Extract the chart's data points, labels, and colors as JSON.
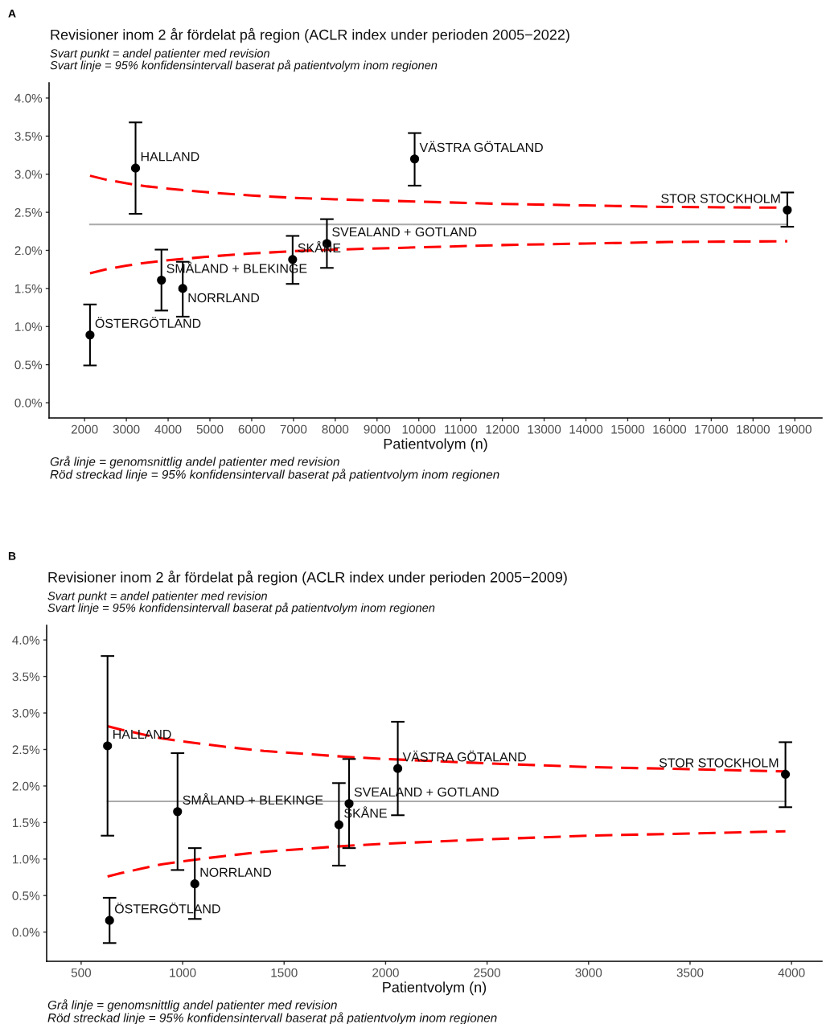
{
  "chart_data": [
    {
      "type": "scatter",
      "title": "Revisioner inom 2 år fördelat på region (ACLR index under perioden 2005−2022)",
      "subtitle": "Svart punkt = andel patienter med revision\nSvart linje = 95% konfidensintervall baserat på patientvolym inom regionen",
      "xlabel": "Patientvolym (n)",
      "xlim": [
        1150,
        19650
      ],
      "xticks": [
        2000,
        3000,
        4000,
        5000,
        6000,
        7000,
        8000,
        9000,
        10000,
        11000,
        12000,
        13000,
        14000,
        15000,
        16000,
        17000,
        18000,
        19000
      ],
      "ylim": [
        -0.2,
        4.2
      ],
      "yticks": [
        {
          "value": 0,
          "label": "0.0%"
        },
        {
          "value": 0.5,
          "label": "0.5%"
        },
        {
          "value": 1,
          "label": "1.0%"
        },
        {
          "value": 1.5,
          "label": "1.5%"
        },
        {
          "value": 2,
          "label": "2.0%"
        },
        {
          "value": 2.5,
          "label": "2.5%"
        },
        {
          "value": 3,
          "label": "3.0%"
        },
        {
          "value": 3.5,
          "label": "3.5%"
        },
        {
          "value": 4,
          "label": "4.0%"
        }
      ],
      "series": [
        {
          "type": "line",
          "color": "#aaaaaa",
          "line_style": "solid",
          "x": [
            2130,
            18820
          ],
          "values": [
            2.34,
            2.34
          ]
        },
        {
          "type": "line",
          "color": "#ff0000",
          "line_style": "dashed",
          "x": [
            2130,
            2500,
            3000,
            3500,
            4000,
            5000,
            6000,
            7000,
            8000,
            10000,
            12000,
            14000,
            16000,
            18820
          ],
          "values": [
            2.98,
            2.93,
            2.88,
            2.84,
            2.81,
            2.76,
            2.72,
            2.69,
            2.67,
            2.64,
            2.61,
            2.59,
            2.57,
            2.56
          ]
        },
        {
          "type": "line",
          "color": "#ff0000",
          "line_style": "dashed",
          "x": [
            2130,
            2500,
            3000,
            3500,
            4000,
            5000,
            6000,
            7000,
            8000,
            10000,
            12000,
            14000,
            16000,
            18820
          ],
          "values": [
            1.7,
            1.75,
            1.8,
            1.84,
            1.87,
            1.92,
            1.96,
            1.99,
            2.01,
            2.04,
            2.07,
            2.09,
            2.11,
            2.12
          ]
        },
        {
          "color": "#000000",
          "marker": "circle",
          "x": [
            2130,
            3220,
            3840,
            4350,
            6980,
            7800,
            9900,
            18820
          ],
          "values": [
            0.89,
            3.08,
            1.61,
            1.5,
            1.88,
            2.09,
            3.2,
            2.53
          ],
          "errors": [
            [
              0.49,
              1.29
            ],
            [
              2.48,
              3.68
            ],
            [
              1.21,
              2.01
            ],
            [
              1.13,
              1.85
            ],
            [
              1.56,
              2.19
            ],
            [
              1.77,
              2.41
            ],
            [
              2.85,
              3.54
            ],
            [
              2.31,
              2.76
            ]
          ]
        }
      ],
      "annotations": [
        "A",
        {
          "text": "ÖSTERGÖTLAND",
          "x": 2130,
          "y": 0.89
        },
        {
          "text": "HALLAND",
          "x": 3220,
          "y": 3.08
        },
        {
          "text": "SMÅLAND + BLEKINGE",
          "x": 3840,
          "y": 1.61
        },
        {
          "text": "NORRLAND",
          "x": 4350,
          "y": 1.5
        },
        {
          "text": "SKÅNE",
          "x": 6980,
          "y": 1.88
        },
        {
          "text": "SVEALAND + GOTLAND",
          "x": 7800,
          "y": 2.09
        },
        {
          "text": "VÄSTRA GÖTALAND",
          "x": 9900,
          "y": 3.2
        },
        {
          "text": "STOR STOCKHOLM",
          "x": 18820,
          "y": 2.53
        },
        "Grå linje = genomsnittlig andel patienter med revision",
        "Röd streckad linje = 95% konfidensintervall baserat på patientvolym inom regionen"
      ]
    },
    {
      "type": "scatter",
      "title": "Revisioner inom 2 år fördelat på region (ACLR index under perioden 2005−2009)",
      "subtitle": "Svart punkt = andel patienter med revision\nSvart linje = 95% konfidensintervall baserat på patientvolym inom regionen",
      "xlabel": "Patientvolym (n)",
      "xlim": [
        330,
        4150
      ],
      "xticks": [
        500,
        1000,
        1500,
        2000,
        2500,
        3000,
        3500,
        4000
      ],
      "ylim": [
        -0.4,
        4.2
      ],
      "yticks": [
        {
          "value": 0,
          "label": "0.0%"
        },
        {
          "value": 0.5,
          "label": "0.5%"
        },
        {
          "value": 1,
          "label": "1.0%"
        },
        {
          "value": 1.5,
          "label": "1.5%"
        },
        {
          "value": 2,
          "label": "2.0%"
        },
        {
          "value": 2.5,
          "label": "2.5%"
        },
        {
          "value": 3,
          "label": "3.0%"
        },
        {
          "value": 3.5,
          "label": "3.5%"
        },
        {
          "value": 4,
          "label": "4.0%"
        }
      ],
      "series": [
        {
          "type": "line",
          "color": "#aaaaaa",
          "line_style": "solid",
          "x": [
            630,
            3970
          ],
          "values": [
            1.79,
            1.79
          ]
        },
        {
          "type": "line",
          "color": "#ff0000",
          "line_style": "dashed",
          "x": [
            630,
            700,
            800,
            900,
            1000,
            1200,
            1400,
            1600,
            1800,
            2000,
            2500,
            3000,
            3500,
            3970
          ],
          "values": [
            2.82,
            2.77,
            2.71,
            2.65,
            2.61,
            2.54,
            2.48,
            2.44,
            2.4,
            2.37,
            2.31,
            2.26,
            2.23,
            2.2
          ]
        },
        {
          "type": "line",
          "color": "#ff0000",
          "line_style": "dashed",
          "x": [
            630,
            700,
            800,
            900,
            1000,
            1200,
            1400,
            1600,
            1800,
            2000,
            2500,
            3000,
            3500,
            3970
          ],
          "values": [
            0.76,
            0.81,
            0.87,
            0.93,
            0.97,
            1.04,
            1.1,
            1.14,
            1.18,
            1.21,
            1.27,
            1.32,
            1.35,
            1.38
          ]
        },
        {
          "color": "#000000",
          "marker": "circle",
          "x": [
            630,
            640,
            975,
            1060,
            1770,
            1820,
            2060,
            3970
          ],
          "values": [
            2.55,
            0.16,
            1.65,
            0.66,
            1.47,
            1.76,
            2.24,
            2.16
          ],
          "errors": [
            [
              1.32,
              3.78
            ],
            [
              -0.15,
              0.47
            ],
            [
              0.85,
              2.45
            ],
            [
              0.18,
              1.15
            ],
            [
              0.91,
              2.04
            ],
            [
              1.15,
              2.37
            ],
            [
              1.6,
              2.88
            ],
            [
              1.71,
              2.6
            ]
          ]
        }
      ],
      "annotations": [
        "B",
        {
          "text": "HALLAND",
          "x": 630,
          "y": 2.55
        },
        {
          "text": "ÖSTERGÖTLAND",
          "x": 640,
          "y": 0.16
        },
        {
          "text": "SMÅLAND + BLEKINGE",
          "x": 975,
          "y": 1.65
        },
        {
          "text": "NORRLAND",
          "x": 1060,
          "y": 0.66
        },
        {
          "text": "SKÅNE",
          "x": 1770,
          "y": 1.47
        },
        {
          "text": "SVEALAND + GOTLAND",
          "x": 1820,
          "y": 1.76
        },
        {
          "text": "VÄSTRA GÖTALAND",
          "x": 2060,
          "y": 2.24
        },
        {
          "text": "STOR STOCKHOLM",
          "x": 3970,
          "y": 2.16
        },
        "Grå linje = genomsnittlig andel patienter med revision",
        "Röd streckad linje = 95% konfidensintervall baserat på patientvolym inom regionen"
      ]
    }
  ]
}
